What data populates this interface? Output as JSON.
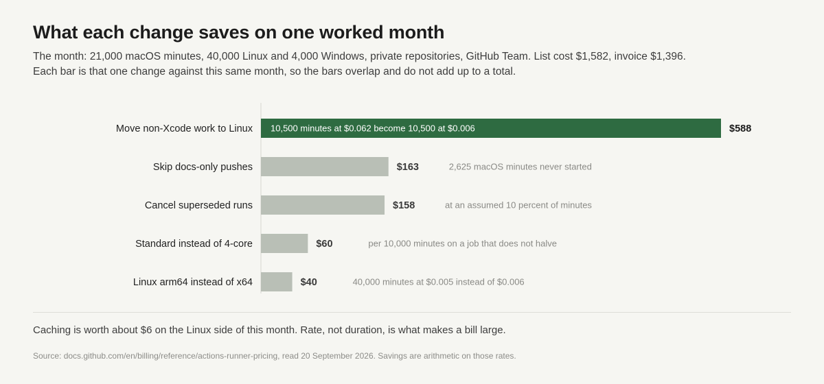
{
  "title": "What each change saves on one worked month",
  "subtitle_lines": [
    "The month: 21,000 macOS minutes, 40,000 Linux and 4,000 Windows, private repositories, GitHub Team. List cost $1,582, invoice $1,396.",
    "Each bar is that one change against this same month, so the bars overlap and do not add up to a total."
  ],
  "footnote": "Caching is worth about $6 on the Linux side of this month. Rate, not duration, is what makes a bill large.",
  "source": "Source: docs.github.com/en/billing/reference/actions-runner-pricing, read 20 September 2026. Savings are arithmetic on those rates.",
  "colors": {
    "highlight": "#2e6b41",
    "bar": "#b9bfb6",
    "axis": "#d6d6d0"
  },
  "chart_data": {
    "type": "bar",
    "orientation": "horizontal",
    "unit": "USD",
    "categories": [
      "Move non-Xcode work to Linux",
      "Skip docs-only pushes",
      "Cancel superseded runs",
      "Standard instead of 4-core",
      "Linux arm64 instead of x64"
    ],
    "values": [
      588,
      163,
      158,
      60,
      40
    ],
    "value_labels": [
      "$588",
      "$163",
      "$158",
      "$60",
      "$40"
    ],
    "annotations": [
      "10,500 minutes at $0.062 become 10,500 at $0.006",
      "2,625 macOS minutes never started",
      "at an assumed 10 percent of minutes",
      "per 10,000 minutes on a job that does not halve",
      "40,000 minutes at $0.005 instead of $0.006"
    ],
    "annotation_inside_bar": [
      true,
      false,
      false,
      false,
      false
    ],
    "highlight_index": 0,
    "grid": false,
    "legend": "none"
  }
}
